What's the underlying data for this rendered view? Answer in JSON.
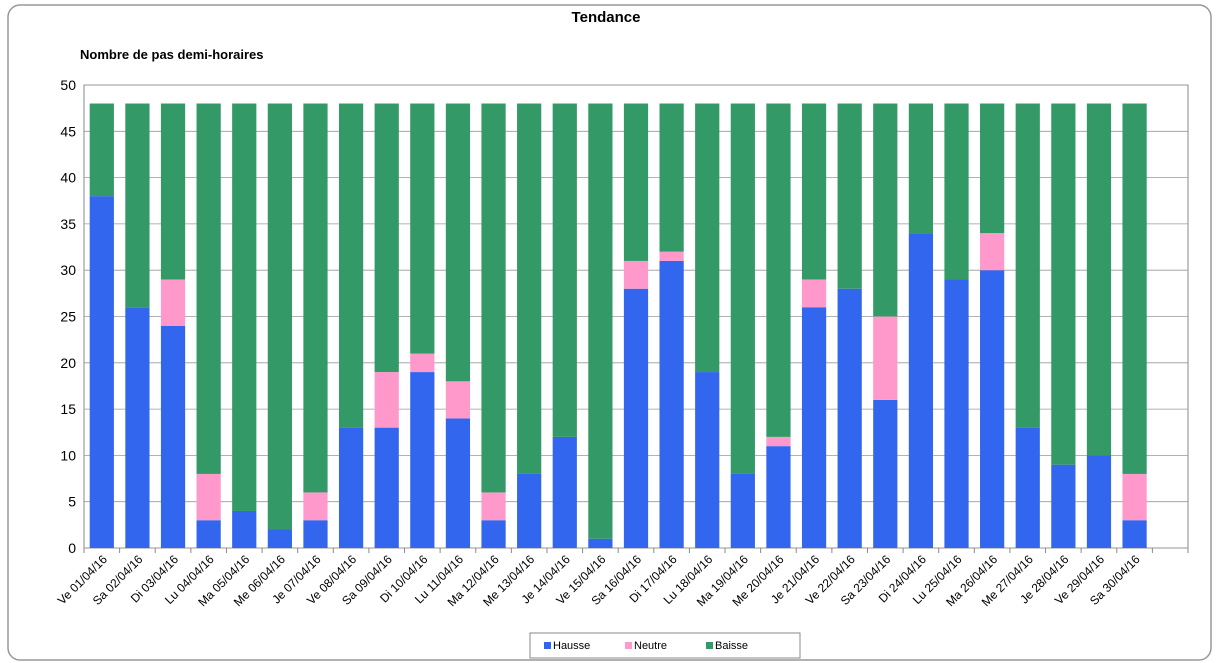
{
  "chart_data": {
    "type": "stacked_bar",
    "title": "Tendance",
    "subtitle": "Nombre de pas demi-horaires",
    "categories": [
      "Ve 01/04/16",
      "Sa 02/04/16",
      "Di 03/04/16",
      "Lu 04/04/16",
      "Ma 05/04/16",
      "Me 06/04/16",
      "Je 07/04/16",
      "Ve 08/04/16",
      "Sa 09/04/16",
      "Di 10/04/16",
      "Lu 11/04/16",
      "Ma 12/04/16",
      "Me 13/04/16",
      "Je 14/04/16",
      "Ve 15/04/16",
      "Sa 16/04/16",
      "Di 17/04/16",
      "Lu 18/04/16",
      "Ma 19/04/16",
      "Me 20/04/16",
      "Je 21/04/16",
      "Ve 22/04/16",
      "Sa 23/04/16",
      "Di 24/04/16",
      "Lu 25/04/16",
      "Ma 26/04/16",
      "Me 27/04/16",
      "Je 28/04/16",
      "Ve 29/04/16",
      "Sa 30/04/16"
    ],
    "series": [
      {
        "name": "Hausse",
        "color": "#3366ee",
        "values": [
          38,
          26,
          24,
          3,
          4,
          2,
          3,
          13,
          13,
          19,
          14,
          3,
          8,
          12,
          1,
          28,
          31,
          19,
          8,
          11,
          26,
          28,
          16,
          34,
          29,
          30,
          13,
          9,
          10,
          3
        ]
      },
      {
        "name": "Neutre",
        "color": "#ff99cc",
        "values": [
          0,
          0,
          5,
          5,
          0,
          0,
          3,
          0,
          6,
          2,
          4,
          3,
          0,
          0,
          0,
          3,
          1,
          0,
          0,
          1,
          3,
          0,
          9,
          0,
          0,
          4,
          0,
          0,
          0,
          5
        ]
      },
      {
        "name": "Baisse",
        "color": "#339966",
        "values": [
          10,
          22,
          19,
          40,
          44,
          46,
          42,
          35,
          29,
          27,
          30,
          42,
          40,
          36,
          47,
          17,
          16,
          29,
          40,
          36,
          19,
          20,
          23,
          14,
          19,
          14,
          35,
          39,
          38,
          40
        ]
      }
    ],
    "ylim": [
      0,
      50
    ],
    "yticks": [
      0,
      5,
      10,
      15,
      20,
      25,
      30,
      35,
      40,
      45,
      50
    ],
    "grid": true,
    "legend": "bottom"
  }
}
